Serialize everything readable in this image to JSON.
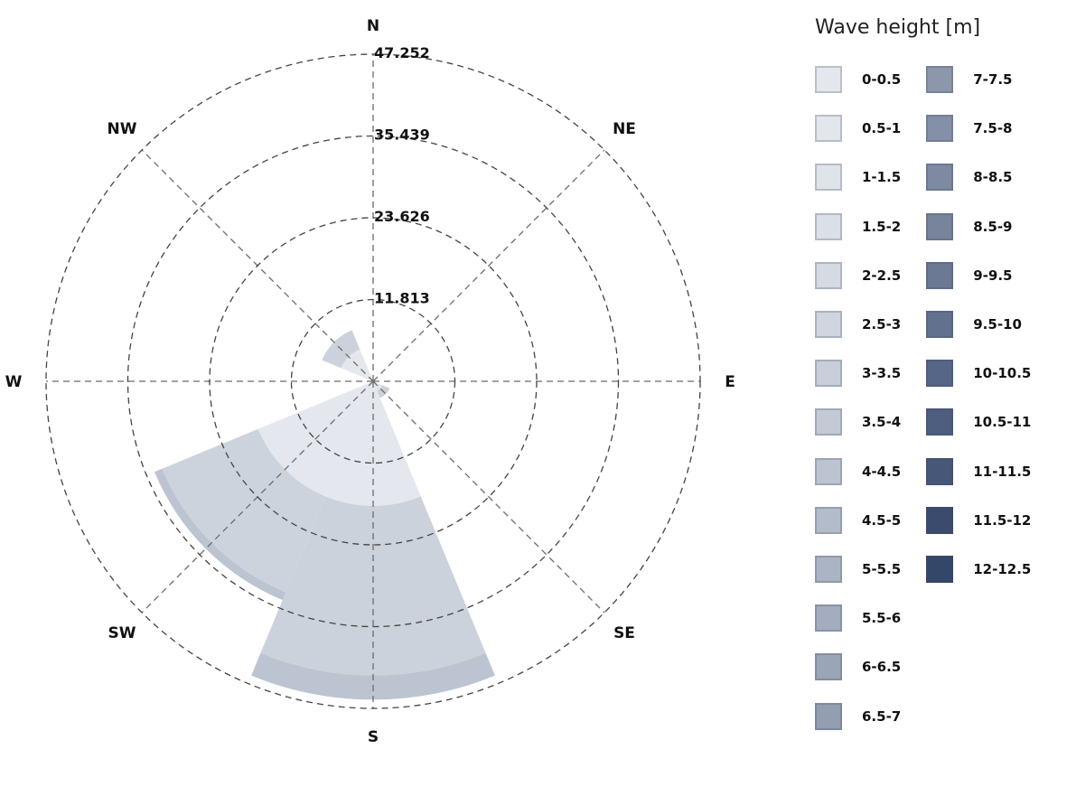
{
  "chart_data": {
    "type": "windrose",
    "legend_title": "Wave height [m]",
    "directions": [
      "N",
      "NE",
      "E",
      "SE",
      "S",
      "SW",
      "W",
      "NW"
    ],
    "ring_values": [
      11.813,
      23.626,
      35.439,
      47.252
    ],
    "ring_labels": [
      "11.813",
      "23.626",
      "35.439",
      "47.252"
    ],
    "r_max": 47.252,
    "bins": [
      {
        "label": "0-0.5",
        "color": "#e4e8ee"
      },
      {
        "label": "0.5-1",
        "color": "#e2e6ed"
      },
      {
        "label": "1-1.5",
        "color": "#dfe3ea"
      },
      {
        "label": "1.5-2",
        "color": "#dbdfe7"
      },
      {
        "label": "2-2.5",
        "color": "#d5dae3"
      },
      {
        "label": "2.5-3",
        "color": "#d0d5df"
      },
      {
        "label": "3-3.5",
        "color": "#c8cfda"
      },
      {
        "label": "3.5-4",
        "color": "#c3cad6"
      },
      {
        "label": "4-4.5",
        "color": "#bcc4d1"
      },
      {
        "label": "4.5-5",
        "color": "#b3bccb"
      },
      {
        "label": "5-5.5",
        "color": "#abb4c5"
      },
      {
        "label": "5.5-6",
        "color": "#a4adbf"
      },
      {
        "label": "6-6.5",
        "color": "#9ba5b8"
      },
      {
        "label": "6.5-7",
        "color": "#949eb3"
      },
      {
        "label": "7-7.5",
        "color": "#8c97ac"
      },
      {
        "label": "7.5-8",
        "color": "#8490a7"
      },
      {
        "label": "8-8.5",
        "color": "#7e8aa2"
      },
      {
        "label": "8.5-9",
        "color": "#77849c"
      },
      {
        "label": "9-9.5",
        "color": "#6b7995"
      },
      {
        "label": "9.5-10",
        "color": "#62718e"
      },
      {
        "label": "10-10.5",
        "color": "#566686"
      },
      {
        "label": "10.5-11",
        "color": "#4e5e7f"
      },
      {
        "label": "11-11.5",
        "color": "#465778"
      },
      {
        "label": "11.5-12",
        "color": "#3a4b6e"
      },
      {
        "label": "12-12.5",
        "color": "#344669"
      }
    ],
    "sectors": [
      {
        "direction": "S",
        "center_deg": 180,
        "width_deg": 45,
        "segments": [
          {
            "to": 18.0,
            "color": "#e4e8ee"
          },
          {
            "to": 42.5,
            "color": "#ccd2dc"
          },
          {
            "to": 46.0,
            "color": "#bcc4d1"
          }
        ]
      },
      {
        "direction": "SW",
        "center_deg": 225,
        "width_deg": 45,
        "segments": [
          {
            "to": 18.0,
            "color": "#e4e8ee"
          },
          {
            "to": 33.0,
            "color": "#cdd3dd"
          },
          {
            "to": 34.2,
            "color": "#bcc4d1"
          }
        ]
      },
      {
        "direction": "NW",
        "center_deg": 315,
        "width_deg": 45,
        "segments": [
          {
            "to": 5.0,
            "color": "#e4e8ee"
          },
          {
            "to": 8.0,
            "color": "#ccd2dc"
          }
        ]
      },
      {
        "direction": "SE",
        "center_deg": 135,
        "width_deg": 45,
        "segments": [
          {
            "to": 1.4,
            "color": "#e4e8ee"
          },
          {
            "to": 2.6,
            "color": "#ccd2dc"
          }
        ]
      }
    ]
  }
}
